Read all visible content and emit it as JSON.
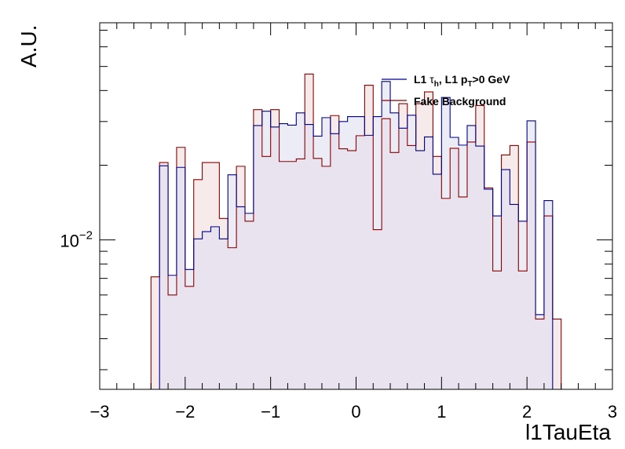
{
  "chart_data": {
    "type": "histogram",
    "xlabel": "l1TauEta",
    "ylabel": "A.U.",
    "xlim": [
      -3,
      3
    ],
    "ylim": [
      0.0025,
      0.075
    ],
    "log_y": true,
    "x_tick_labels": [
      "−3",
      "−2",
      "−1",
      "0",
      "1",
      "2",
      "3"
    ],
    "y_tick_labels": [
      {
        "base": "10",
        "exp": "−2"
      }
    ],
    "legend_position": "top-right",
    "bin_edges": [
      -2.4,
      -2.3,
      -2.2,
      -2.1,
      -2.0,
      -1.9,
      -1.8,
      -1.7,
      -1.6,
      -1.5,
      -1.4,
      -1.3,
      -1.2,
      -1.1,
      -1.0,
      -0.9,
      -0.8,
      -0.7,
      -0.6,
      -0.5,
      -0.4,
      -0.3,
      -0.2,
      -0.1,
      0.0,
      0.1,
      0.2,
      0.3,
      0.4,
      0.5,
      0.6,
      0.7,
      0.8,
      0.9,
      1.0,
      1.1,
      1.2,
      1.3,
      1.4,
      1.5,
      1.6,
      1.7,
      1.8,
      1.9,
      2.0,
      2.1,
      2.2,
      2.3,
      2.4
    ],
    "series": [
      {
        "name_parts": {
          "a": "L1 ",
          "tau": "τ",
          "h": "h",
          "b": ", L1 p",
          "T": "T",
          "c": ">0 GeV"
        },
        "color": "#00008b",
        "fill": "#dcdcf0",
        "values": [
          0,
          0.0199,
          0.0072,
          0.0196,
          0.0076,
          0.0101,
          0.0108,
          0.0113,
          0.0101,
          0.0183,
          0.0136,
          0.0128,
          0.0289,
          0.033,
          0.0285,
          0.0294,
          0.029,
          0.0325,
          0.0292,
          0.0262,
          0.0311,
          0.0268,
          0.03,
          0.0314,
          0.0314,
          0.0264,
          0.0314,
          0.0435,
          0.0325,
          0.0282,
          0.0318,
          0.0229,
          0.026,
          0.0184,
          0.0375,
          0.0259,
          0.0241,
          0.0289,
          0.0239,
          0.016,
          0.0125,
          0.0192,
          0.0139,
          0.0119,
          0.0302,
          0.005,
          0.0144,
          0
        ]
      },
      {
        "name": "Fake Background",
        "color": "#8b0000",
        "fill": "#f0dcdc",
        "values": [
          0.0071,
          0.0205,
          0.006,
          0.0236,
          0.0065,
          0.0175,
          0.0205,
          0.0205,
          0.0122,
          0.0093,
          0.0198,
          0.0119,
          0.0335,
          0.0217,
          0.0335,
          0.0207,
          0.0207,
          0.0212,
          0.0466,
          0.0213,
          0.0198,
          0.0317,
          0.0233,
          0.0229,
          0.0263,
          0.042,
          0.011,
          0.0308,
          0.0225,
          0.0354,
          0.024,
          0.0354,
          0.0395,
          0.0217,
          0.0147,
          0.0234,
          0.0149,
          0.0248,
          0.0348,
          0.0162,
          0.0075,
          0.022,
          0.024,
          0.0075,
          0.0248,
          0.0048,
          0.0125,
          0.0048
        ]
      }
    ]
  }
}
